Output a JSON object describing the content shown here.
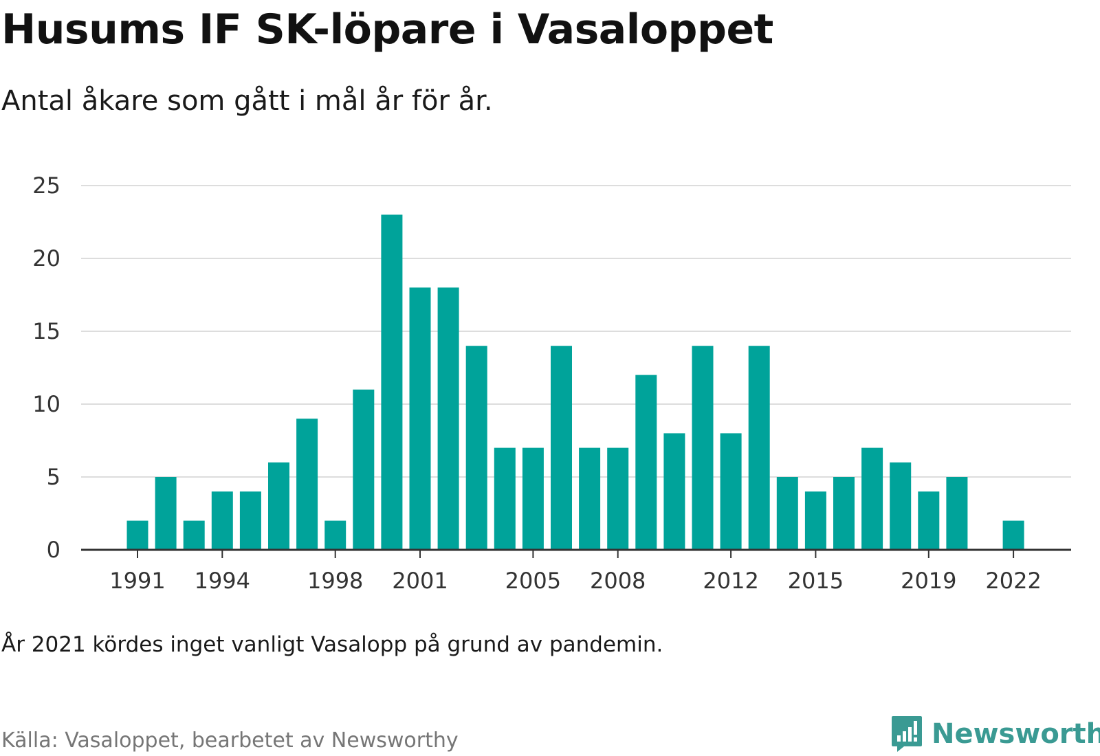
{
  "header": {
    "title": "Husums IF SK-löpare i Vasaloppet",
    "subtitle": "Antal åkare som gått i mål år för år."
  },
  "footer": {
    "note": "År 2021 kördes inget vanligt Vasalopp på grund av pandemin.",
    "source": "Källa: Vasaloppet, bearbetet av Newsworthy",
    "brand": "Newsworthy"
  },
  "colors": {
    "bar": "#00a39a",
    "grid": "#dddddd",
    "axis": "#333333",
    "brand": "#3a9a93"
  },
  "icons": {
    "brand_logo": "newsworthy-logo-icon"
  },
  "chart_data": {
    "type": "bar",
    "title": "Husums IF SK-löpare i Vasaloppet",
    "subtitle": "Antal åkare som gått i mål år för år.",
    "x": [
      1991,
      1992,
      1993,
      1994,
      1995,
      1996,
      1997,
      1998,
      1999,
      2000,
      2001,
      2002,
      2003,
      2004,
      2005,
      2006,
      2007,
      2008,
      2009,
      2010,
      2011,
      2012,
      2013,
      2014,
      2015,
      2016,
      2017,
      2018,
      2019,
      2020,
      2021,
      2022
    ],
    "values": [
      2,
      5,
      2,
      4,
      4,
      6,
      9,
      2,
      11,
      23,
      18,
      18,
      14,
      7,
      7,
      14,
      7,
      7,
      12,
      8,
      14,
      8,
      14,
      5,
      4,
      5,
      7,
      6,
      4,
      5,
      null,
      2
    ],
    "xticks": [
      "1991",
      "1994",
      "1998",
      "2001",
      "2005",
      "2008",
      "2012",
      "2015",
      "2019",
      "2022"
    ],
    "yticks": [
      "0",
      "5",
      "10",
      "15",
      "20",
      "25"
    ],
    "ylim": [
      0,
      25
    ],
    "grid": true,
    "legend": "none",
    "xlabel": "",
    "ylabel": ""
  }
}
